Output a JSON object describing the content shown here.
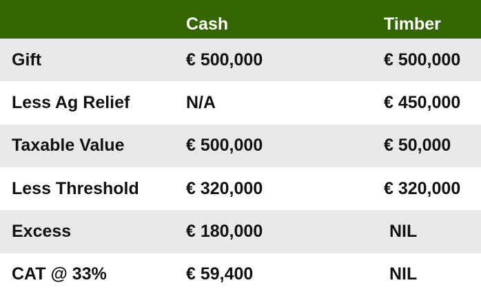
{
  "table": {
    "columns": [
      "Cash",
      "Timber"
    ],
    "rows": [
      [
        "Gift",
        "€ 500,000",
        "€ 500,000"
      ],
      [
        "Less Ag Relief",
        "N/A",
        "€ 450,000"
      ],
      [
        "Taxable Value",
        "€ 500,000",
        "€ 50,000"
      ],
      [
        "Less Threshold",
        "€ 320,000",
        "€ 320,000"
      ],
      [
        "Excess",
        "€ 180,000",
        "NIL"
      ],
      [
        "CAT @ 33%",
        "€ 59,400",
        "NIL"
      ]
    ]
  }
}
